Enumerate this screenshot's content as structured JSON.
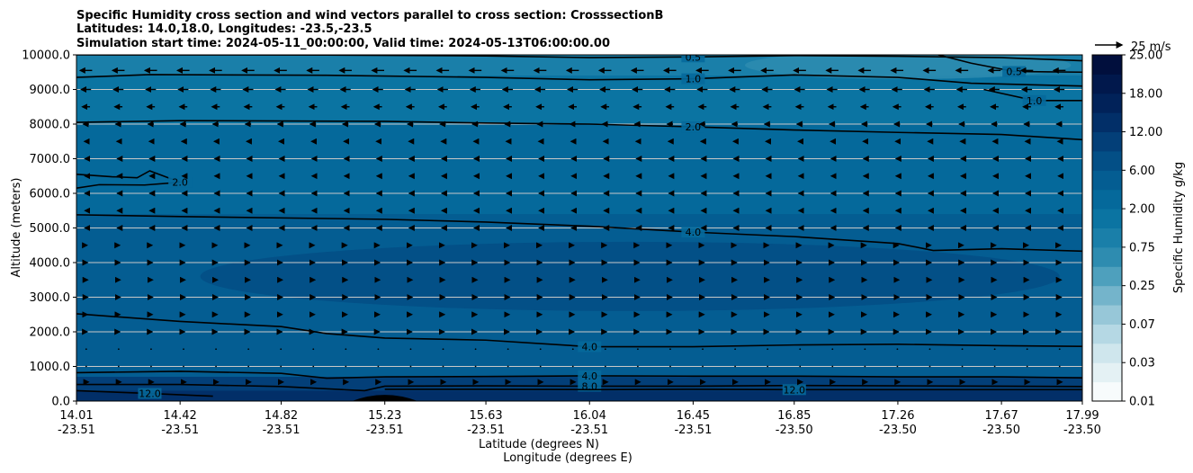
{
  "chart_data": {
    "type": "contour",
    "title_lines": [
      "Specific Humidity cross section and wind vectors parallel to cross section: CrosssectionB",
      "Latitudes: 14.0,18.0, Longitudes: -23.5,-23.5",
      "Simulation start time: 2024-05-11_00:00:00, Valid time: 2024-05-13T06:00:00.00"
    ],
    "ylabel": "Altitude (meters)",
    "xlabel_lines": [
      "Latitude (degrees N)",
      "Longitude (degrees E)"
    ],
    "ylim": [
      0,
      10000
    ],
    "y_ticks": [
      "0.0",
      "1000.0",
      "2000.0",
      "3000.0",
      "4000.0",
      "5000.0",
      "6000.0",
      "7000.0",
      "8000.0",
      "9000.0",
      "10000.0"
    ],
    "x_ticks": [
      {
        "lat": "14.01",
        "lon": "-23.51"
      },
      {
        "lat": "14.42",
        "lon": "-23.51"
      },
      {
        "lat": "14.82",
        "lon": "-23.51"
      },
      {
        "lat": "15.23",
        "lon": "-23.51"
      },
      {
        "lat": "15.63",
        "lon": "-23.51"
      },
      {
        "lat": "16.04",
        "lon": "-23.51"
      },
      {
        "lat": "16.45",
        "lon": "-23.51"
      },
      {
        "lat": "16.85",
        "lon": "-23.50"
      },
      {
        "lat": "17.26",
        "lon": "-23.50"
      },
      {
        "lat": "17.67",
        "lon": "-23.50"
      },
      {
        "lat": "17.99",
        "lon": "-23.50"
      }
    ],
    "grid": "horizontal",
    "colorbar": {
      "label": "Specific Humidity g/kg",
      "levels": [
        0.01,
        0.02,
        0.03,
        0.05,
        0.07,
        0.1,
        0.25,
        0.5,
        0.75,
        1.0,
        2.0,
        4.0,
        6.0,
        8.0,
        12.0,
        15.0,
        18.0,
        21.0,
        25.0
      ],
      "tick_labels": [
        "0.01",
        "0.03",
        "0.07",
        "0.25",
        "0.75",
        "2.00",
        "6.00",
        "12.00",
        "18.00",
        "25.00"
      ],
      "colors": [
        "#f7fbfc",
        "#e4f1f4",
        "#cfe6ed",
        "#b5d8e4",
        "#97c7d8",
        "#74b4cb",
        "#4ea0bd",
        "#2e8cb0",
        "#1a7fa9",
        "#0b74a2",
        "#05699b",
        "#045d92",
        "#034f86",
        "#033f78",
        "#022f68",
        "#012259",
        "#01184c",
        "#010f3d"
      ]
    },
    "contour_lines": [
      {
        "label": "0.5",
        "points": [
          [
            14.01,
            10000
          ],
          [
            15.0,
            9995
          ],
          [
            15.63,
            9970
          ],
          [
            16.04,
            9920
          ],
          [
            16.45,
            9940
          ],
          [
            16.85,
            9980
          ],
          [
            17.26,
            9960
          ],
          [
            17.67,
            9920
          ],
          [
            17.99,
            9830
          ]
        ]
      },
      {
        "label": "0.5",
        "points": [
          [
            17.42,
            10000
          ],
          [
            17.55,
            9760
          ],
          [
            17.72,
            9520
          ],
          [
            17.99,
            9500
          ]
        ]
      },
      {
        "label": "1.0",
        "points": [
          [
            14.01,
            9350
          ],
          [
            14.3,
            9430
          ],
          [
            15.0,
            9410
          ],
          [
            15.63,
            9350
          ],
          [
            16.04,
            9280
          ],
          [
            16.45,
            9310
          ],
          [
            16.85,
            9420
          ],
          [
            17.26,
            9350
          ],
          [
            17.55,
            9180
          ],
          [
            17.99,
            9100
          ]
        ]
      },
      {
        "label": "1.0",
        "points": [
          [
            17.6,
            9000
          ],
          [
            17.8,
            8680
          ],
          [
            17.99,
            8680
          ]
        ]
      },
      {
        "label": "2.0",
        "points": [
          [
            14.01,
            8050
          ],
          [
            14.42,
            8100
          ],
          [
            15.23,
            8080
          ],
          [
            15.63,
            8030
          ],
          [
            16.04,
            8000
          ],
          [
            16.45,
            7920
          ],
          [
            16.85,
            7830
          ],
          [
            17.26,
            7760
          ],
          [
            17.67,
            7700
          ],
          [
            17.99,
            7550
          ]
        ]
      },
      {
        "label": "2.0",
        "points": [
          [
            14.01,
            6550
          ],
          [
            14.15,
            6480
          ],
          [
            14.25,
            6450
          ],
          [
            14.3,
            6650
          ],
          [
            14.42,
            6320
          ],
          [
            14.28,
            6240
          ],
          [
            14.1,
            6250
          ],
          [
            14.01,
            6150
          ]
        ]
      },
      {
        "label": "4.0",
        "points": [
          [
            14.01,
            5380
          ],
          [
            14.42,
            5330
          ],
          [
            15.23,
            5250
          ],
          [
            15.63,
            5170
          ],
          [
            16.04,
            5050
          ],
          [
            16.45,
            4880
          ],
          [
            16.85,
            4750
          ],
          [
            17.26,
            4550
          ],
          [
            17.4,
            4350
          ],
          [
            17.67,
            4400
          ],
          [
            17.99,
            4330
          ]
        ]
      },
      {
        "label": "4.0",
        "points": [
          [
            14.01,
            2520
          ],
          [
            14.42,
            2300
          ],
          [
            14.82,
            2150
          ],
          [
            15.0,
            1950
          ],
          [
            15.23,
            1820
          ],
          [
            15.63,
            1760
          ],
          [
            16.04,
            1570
          ],
          [
            16.45,
            1570
          ],
          [
            16.85,
            1620
          ],
          [
            17.26,
            1640
          ],
          [
            17.67,
            1600
          ],
          [
            17.99,
            1580
          ]
        ]
      },
      {
        "label": "4.0",
        "points": [
          [
            14.01,
            820
          ],
          [
            14.42,
            860
          ],
          [
            14.82,
            800
          ],
          [
            15.0,
            660
          ],
          [
            15.23,
            700
          ],
          [
            15.63,
            710
          ],
          [
            16.04,
            730
          ],
          [
            16.45,
            720
          ],
          [
            16.85,
            720
          ],
          [
            17.26,
            700
          ],
          [
            17.67,
            700
          ],
          [
            17.99,
            670
          ]
        ]
      },
      {
        "label": "8.0",
        "points": [
          [
            14.01,
            480
          ],
          [
            14.42,
            480
          ],
          [
            14.82,
            420
          ],
          [
            15.15,
            300
          ],
          [
            15.23,
            430
          ],
          [
            15.63,
            440
          ],
          [
            16.04,
            430
          ],
          [
            16.45,
            430
          ],
          [
            16.85,
            450
          ],
          [
            17.26,
            440
          ],
          [
            17.67,
            430
          ],
          [
            17.99,
            420
          ]
        ]
      },
      {
        "label": "12.0",
        "points": [
          [
            14.01,
            300
          ],
          [
            14.3,
            220
          ],
          [
            14.55,
            140
          ]
        ]
      },
      {
        "label": "12.0",
        "points": [
          [
            15.23,
            340
          ],
          [
            15.63,
            340
          ],
          [
            16.04,
            330
          ],
          [
            16.45,
            340
          ],
          [
            16.85,
            330
          ],
          [
            17.26,
            330
          ],
          [
            17.67,
            330
          ],
          [
            17.99,
            330
          ]
        ]
      }
    ],
    "wind_vectors": {
      "reference": "25 m/s",
      "reference_speed": 25,
      "rows": [
        {
          "z": 9550,
          "u": -11
        },
        {
          "z": 9000,
          "u": -9
        },
        {
          "z": 8500,
          "u": -7
        },
        {
          "z": 8000,
          "u": -5
        },
        {
          "z": 7500,
          "u": -3
        },
        {
          "z": 7000,
          "u": -2
        },
        {
          "z": 6500,
          "u": -2
        },
        {
          "z": 6000,
          "u": -2
        },
        {
          "z": 5500,
          "u": -2
        },
        {
          "z": 5000,
          "u": -2
        },
        {
          "z": 4500,
          "u": 1.5
        },
        {
          "z": 4000,
          "u": 2
        },
        {
          "z": 3500,
          "u": 2.5
        },
        {
          "z": 3000,
          "u": 2.5
        },
        {
          "z": 2500,
          "u": 2
        },
        {
          "z": 2000,
          "u": 1.5
        },
        {
          "z": 1500,
          "u": 1
        },
        {
          "z": 1000,
          "u": 1
        },
        {
          "z": 550,
          "u": 4
        }
      ]
    },
    "terrain": {
      "x_center": 15.23,
      "x_half_width": 0.13,
      "peak": 200
    }
  }
}
